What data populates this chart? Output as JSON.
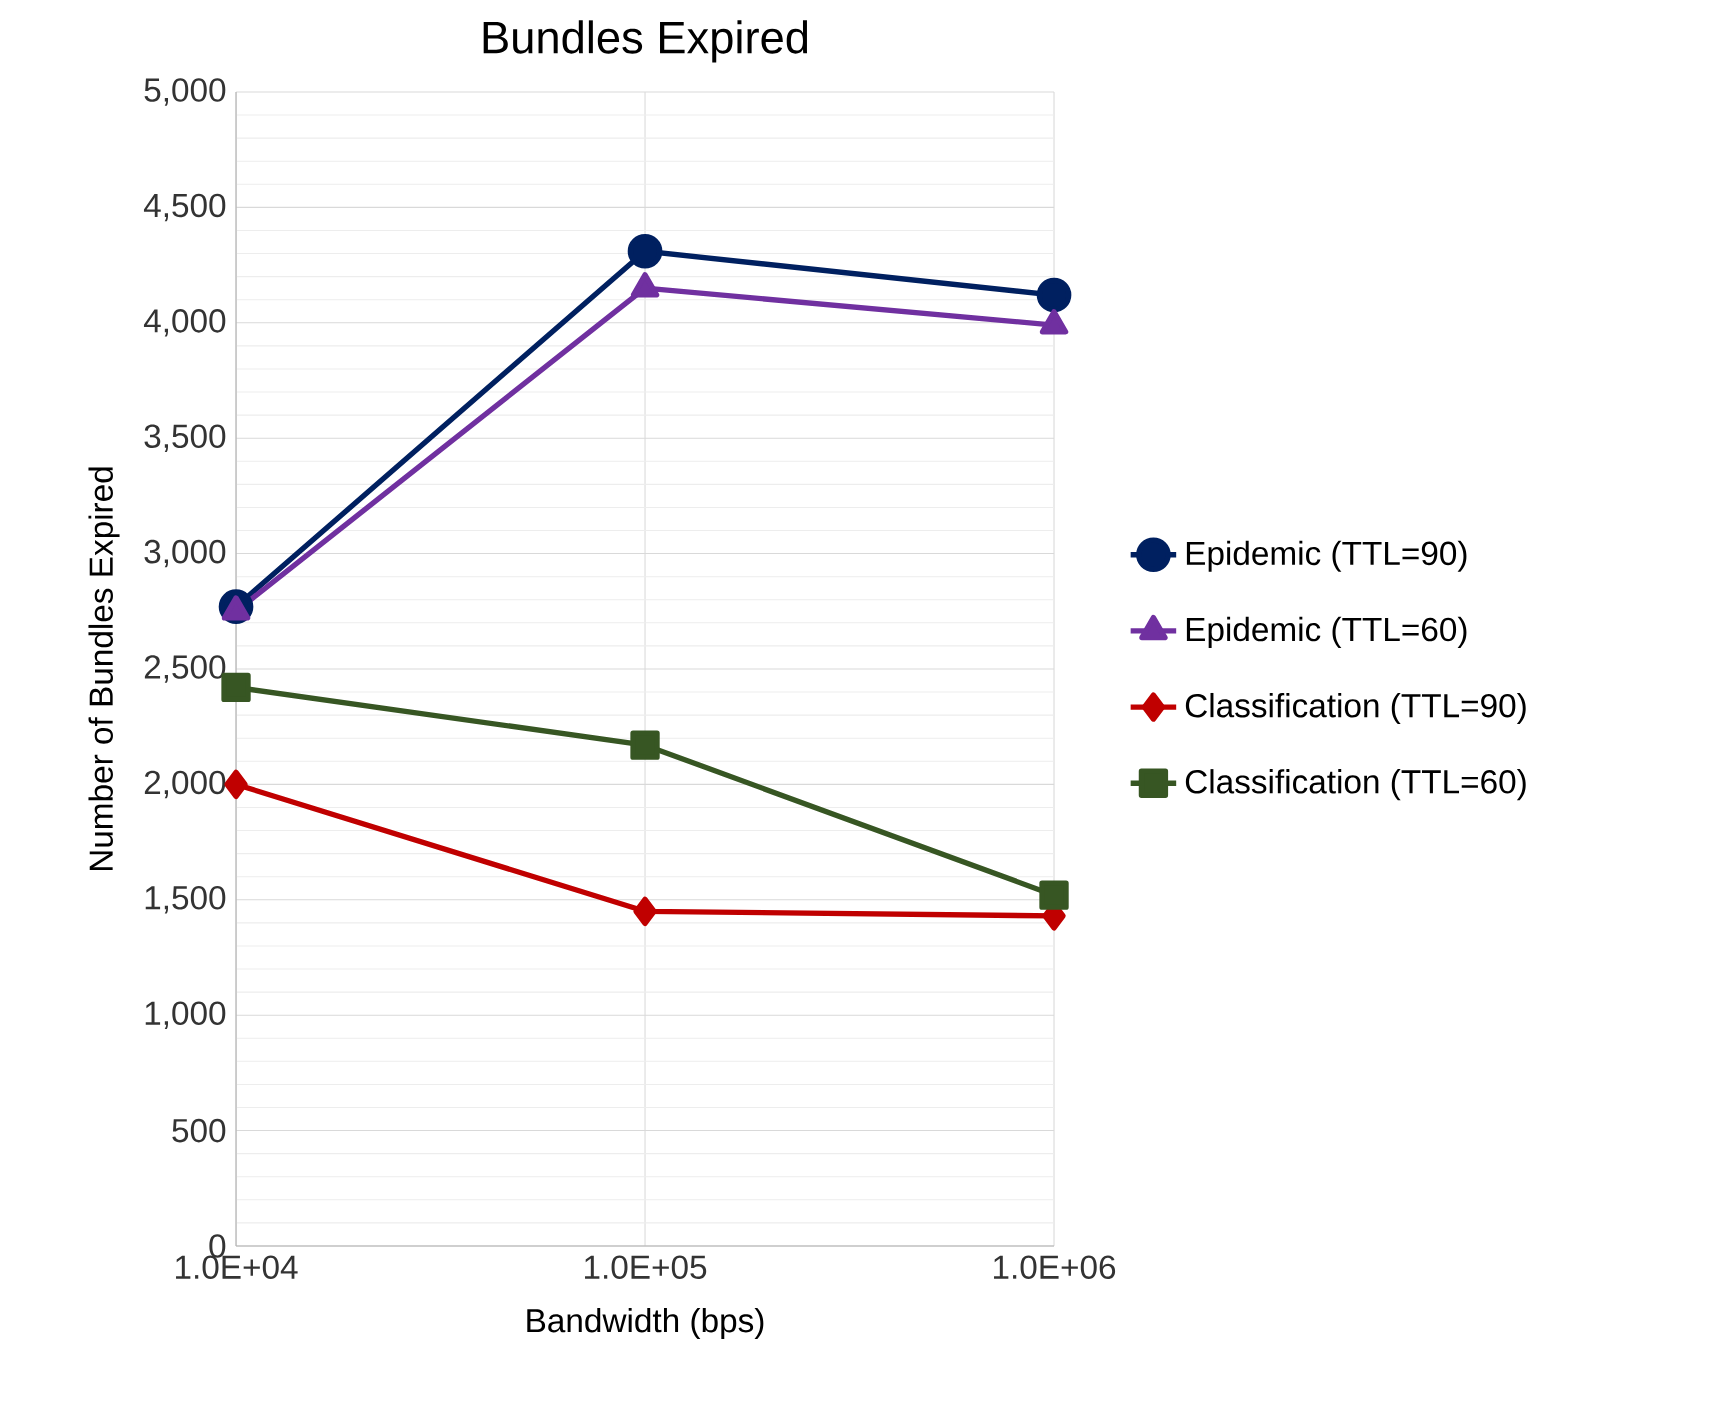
{
  "chart_data": {
    "type": "line",
    "title": "Bundles Expired",
    "xlabel": "Bandwidth (bps)",
    "ylabel": "Number of Bundles Expired",
    "x": [
      10000,
      100000,
      1000000
    ],
    "log": "x",
    "xlim": [
      10000,
      1000000
    ],
    "xticks": [
      {
        "value": 10000,
        "label": "1.0E+04"
      },
      {
        "value": 100000,
        "label": "1.0E+05"
      },
      {
        "value": 1000000,
        "label": "1.0E+06"
      }
    ],
    "ylim": [
      0,
      5000
    ],
    "yticks": [
      {
        "value": 0,
        "label": "0"
      },
      {
        "value": 500,
        "label": "500"
      },
      {
        "value": 1000,
        "label": "1,000"
      },
      {
        "value": 1500,
        "label": "1,500"
      },
      {
        "value": 2000,
        "label": "2,000"
      },
      {
        "value": 2500,
        "label": "2,500"
      },
      {
        "value": 3000,
        "label": "3,000"
      },
      {
        "value": 3500,
        "label": "3,500"
      },
      {
        "value": 4000,
        "label": "4,000"
      },
      {
        "value": 4500,
        "label": "4,500"
      },
      {
        "value": 5000,
        "label": "5,000"
      }
    ],
    "grid": true,
    "legend": "right",
    "line_style": "solid",
    "series": [
      {
        "name": "Epidemic (TTL=90)",
        "color": "#002060",
        "marker": "circle",
        "values": [
          2770,
          4310,
          4120
        ]
      },
      {
        "name": "Epidemic (TTL=60)",
        "color": "#7030a0",
        "marker": "triangle",
        "values": [
          2750,
          4150,
          3990
        ]
      },
      {
        "name": "Classification (TTL=90)",
        "color": "#c00000",
        "marker": "diamond",
        "values": [
          2000,
          1450,
          1430
        ]
      },
      {
        "name": "Classification (TTL=60)",
        "color": "#375623",
        "marker": "square",
        "values": [
          2420,
          2170,
          1520
        ]
      }
    ]
  }
}
